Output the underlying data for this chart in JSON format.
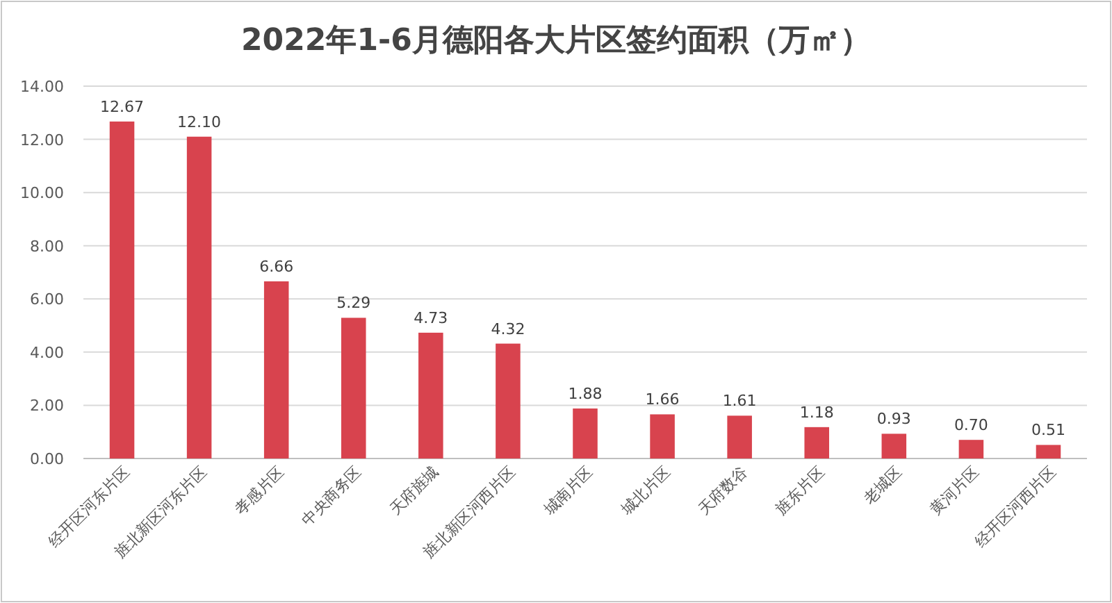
{
  "chart_data": {
    "type": "bar",
    "title": "2022年1-6月德阳各大片区签约面积（万㎡）",
    "categories": [
      "经开区河东片区",
      "旌北新区河东片区",
      "孝感片区",
      "中央商务区",
      "天府旌城",
      "旌北新区河西片区",
      "城南片区",
      "城北片区",
      "天府数谷",
      "旌东片区",
      "老城区",
      "黄河片区",
      "经开区河西片区"
    ],
    "values": [
      12.67,
      12.1,
      6.66,
      5.29,
      4.73,
      4.32,
      1.88,
      1.66,
      1.61,
      1.18,
      0.93,
      0.7,
      0.51
    ],
    "value_labels": [
      "12.67",
      "12.10",
      "6.66",
      "5.29",
      "4.73",
      "4.32",
      "1.88",
      "1.66",
      "1.61",
      "1.18",
      "0.93",
      "0.70",
      "0.51"
    ],
    "color": "#d8434e",
    "ylim": [
      0,
      14
    ],
    "yticks": [
      {
        "value": 0,
        "label": "0.00"
      },
      {
        "value": 2,
        "label": "2.00"
      },
      {
        "value": 4,
        "label": "4.00"
      },
      {
        "value": 6,
        "label": "6.00"
      },
      {
        "value": 8,
        "label": "8.00"
      },
      {
        "value": 10,
        "label": "10.00"
      },
      {
        "value": 12,
        "label": "12.00"
      },
      {
        "value": 14,
        "label": "14.00"
      }
    ],
    "grid": "y"
  }
}
